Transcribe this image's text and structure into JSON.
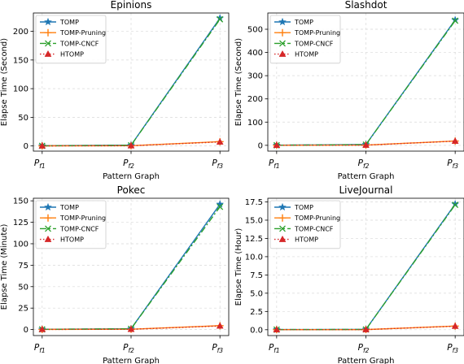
{
  "chart_data": [
    {
      "type": "line",
      "title": "Epinions",
      "xlabel": "Pattern Graph",
      "ylabel": "Elapse Time (Second)",
      "categories": [
        {
          "base": "P",
          "sub": "f1"
        },
        {
          "base": "P",
          "sub": "f2"
        },
        {
          "base": "P",
          "sub": "f3"
        }
      ],
      "ylim": [
        -9,
        232
      ],
      "yticks": [
        0,
        50,
        100,
        150,
        200
      ],
      "grid": true,
      "legend_position": "upper-left",
      "series": [
        {
          "name": "TOMP",
          "values": [
            0.4,
            1.5,
            223
          ],
          "color": "#1f77b4",
          "marker": "star",
          "dash": "solid"
        },
        {
          "name": "TOMP-Pruning",
          "values": [
            0.2,
            0.5,
            7.5
          ],
          "color": "#ff7f0e",
          "marker": "plus",
          "dash": "solid"
        },
        {
          "name": "TOMP-CNCF",
          "values": [
            0.3,
            1.2,
            221
          ],
          "color": "#2ca02c",
          "marker": "x",
          "dash": "dashdot"
        },
        {
          "name": "HTOMP",
          "values": [
            0.2,
            0.4,
            7.0
          ],
          "color": "#d62728",
          "marker": "triangle",
          "dash": "dotted"
        }
      ]
    },
    {
      "type": "line",
      "title": "Slashdot",
      "xlabel": "Pattern Graph",
      "ylabel": "Elapse Time (Second)",
      "categories": [
        {
          "base": "P",
          "sub": "f1"
        },
        {
          "base": "P",
          "sub": "f2"
        },
        {
          "base": "P",
          "sub": "f3"
        }
      ],
      "ylim": [
        -25,
        570
      ],
      "yticks": [
        0,
        100,
        200,
        300,
        400,
        500
      ],
      "grid": true,
      "legend_position": "upper-left",
      "series": [
        {
          "name": "TOMP",
          "values": [
            0.5,
            3.5,
            540
          ],
          "color": "#1f77b4",
          "marker": "star",
          "dash": "solid"
        },
        {
          "name": "TOMP-Pruning",
          "values": [
            0.3,
            1.0,
            18.5
          ],
          "color": "#ff7f0e",
          "marker": "plus",
          "dash": "solid"
        },
        {
          "name": "TOMP-CNCF",
          "values": [
            0.4,
            3.0,
            537
          ],
          "color": "#2ca02c",
          "marker": "x",
          "dash": "dashdot"
        },
        {
          "name": "HTOMP",
          "values": [
            0.3,
            0.8,
            18.0
          ],
          "color": "#d62728",
          "marker": "triangle",
          "dash": "dotted"
        }
      ]
    },
    {
      "type": "line",
      "title": "Pokec",
      "xlabel": "Pattern Graph",
      "ylabel": "Elapse Time (Minute)",
      "categories": [
        {
          "base": "P",
          "sub": "f1"
        },
        {
          "base": "P",
          "sub": "f2"
        },
        {
          "base": "P",
          "sub": "f3"
        }
      ],
      "ylim": [
        -7,
        153
      ],
      "yticks": [
        0,
        25,
        50,
        75,
        100,
        125,
        150
      ],
      "grid": true,
      "legend_position": "upper-left",
      "series": [
        {
          "name": "TOMP",
          "values": [
            0.3,
            1.0,
            146
          ],
          "color": "#1f77b4",
          "marker": "star",
          "dash": "solid"
        },
        {
          "name": "TOMP-Pruning",
          "values": [
            0.2,
            0.4,
            4.5
          ],
          "color": "#ff7f0e",
          "marker": "plus",
          "dash": "solid"
        },
        {
          "name": "TOMP-CNCF",
          "values": [
            0.3,
            0.9,
            143
          ],
          "color": "#2ca02c",
          "marker": "x",
          "dash": "dashdot"
        },
        {
          "name": "HTOMP",
          "values": [
            0.2,
            0.3,
            4.2
          ],
          "color": "#d62728",
          "marker": "triangle",
          "dash": "dotted"
        }
      ]
    },
    {
      "type": "line",
      "title": "LiveJournal",
      "xlabel": "Pattern Graph",
      "ylabel": "Elapse Time (Hour)",
      "categories": [
        {
          "base": "P",
          "sub": "f1"
        },
        {
          "base": "P",
          "sub": "f2"
        },
        {
          "base": "P",
          "sub": "f3"
        }
      ],
      "ylim": [
        -0.8,
        18.0
      ],
      "yticks": [
        0.0,
        2.5,
        5.0,
        7.5,
        10.0,
        12.5,
        15.0,
        17.5
      ],
      "grid": true,
      "legend_position": "upper-left",
      "series": [
        {
          "name": "TOMP",
          "values": [
            0.02,
            0.05,
            17.2
          ],
          "color": "#1f77b4",
          "marker": "star",
          "dash": "solid"
        },
        {
          "name": "TOMP-Pruning",
          "values": [
            0.01,
            0.02,
            0.5
          ],
          "color": "#ff7f0e",
          "marker": "plus",
          "dash": "solid"
        },
        {
          "name": "TOMP-CNCF",
          "values": [
            0.02,
            0.04,
            17.1
          ],
          "color": "#2ca02c",
          "marker": "x",
          "dash": "dashdot"
        },
        {
          "name": "HTOMP",
          "values": [
            0.01,
            0.02,
            0.48
          ],
          "color": "#d62728",
          "marker": "triangle",
          "dash": "dotted"
        }
      ]
    }
  ]
}
